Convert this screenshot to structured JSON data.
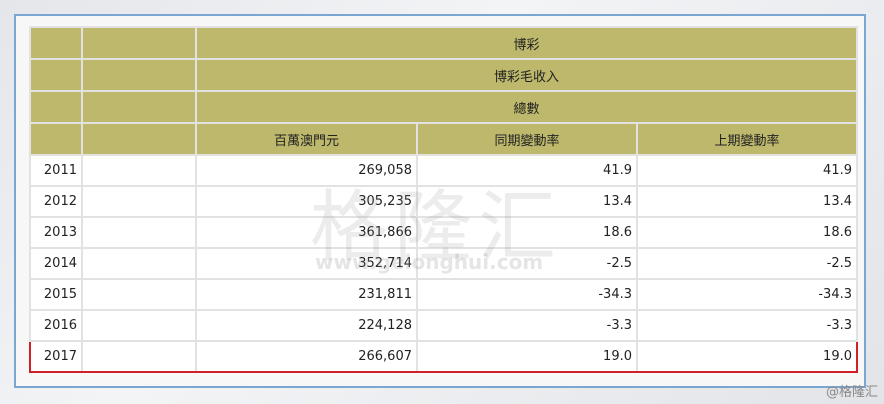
{
  "header": {
    "row1": "博彩",
    "row2": "博彩毛收入",
    "row3": "總數",
    "columns": [
      "百萬澳門元",
      "同期變動率",
      "上期變動率"
    ]
  },
  "rows": [
    {
      "year": "2011",
      "value": "269,058",
      "yoy": "41.9",
      "pop": "41.9"
    },
    {
      "year": "2012",
      "value": "305,235",
      "yoy": "13.4",
      "pop": "13.4"
    },
    {
      "year": "2013",
      "value": "361,866",
      "yoy": "18.6",
      "pop": "18.6"
    },
    {
      "year": "2014",
      "value": "352,714",
      "yoy": "-2.5",
      "pop": "-2.5"
    },
    {
      "year": "2015",
      "value": "231,811",
      "yoy": "-34.3",
      "pop": "-34.3"
    },
    {
      "year": "2016",
      "value": "224,128",
      "yoy": "-3.3",
      "pop": "-3.3"
    },
    {
      "year": "2017",
      "value": "266,607",
      "yoy": "19.0",
      "pop": "19.0"
    }
  ],
  "highlight_color": "#d0202a",
  "header_color": "#bdb86c",
  "watermark": {
    "logo": "格隆汇",
    "url": "www.gelonghui.com"
  },
  "credit": "@格隆汇"
}
